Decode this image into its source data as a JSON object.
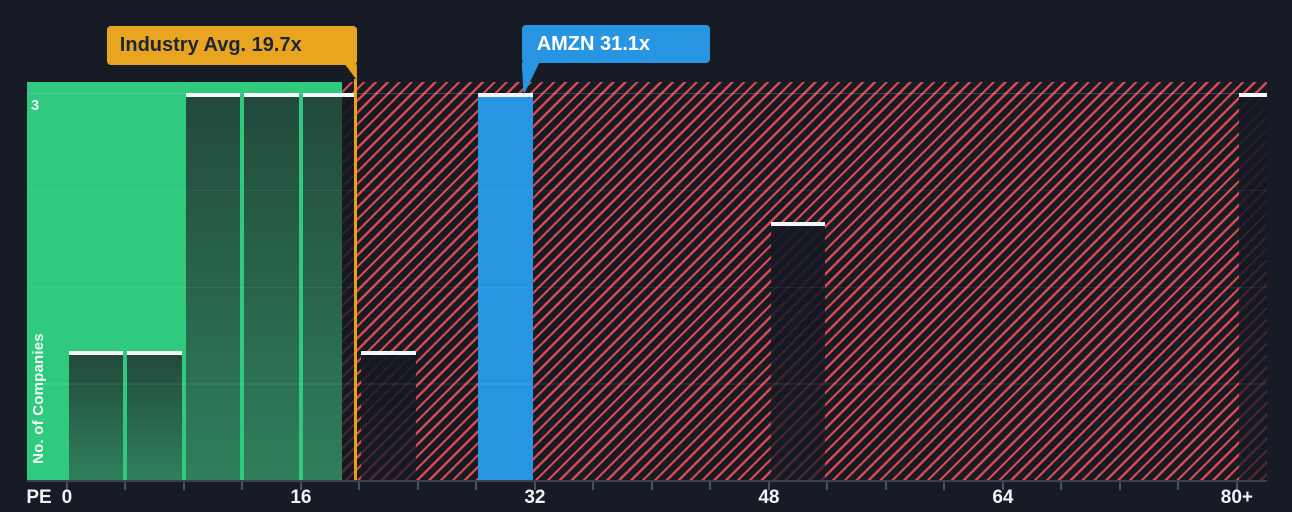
{
  "chart_data": {
    "type": "bar",
    "title": "",
    "xlabel": "PE",
    "ylabel": "No. of Companies",
    "y_max_label": "3",
    "ylim": [
      0,
      3
    ],
    "xlim": [
      0,
      82
    ],
    "x_tick_values": [
      0,
      16,
      32,
      48,
      64,
      80
    ],
    "x_tick_labels": [
      "0",
      "16",
      "32",
      "48",
      "64",
      "80+"
    ],
    "minor_tick_step": 4,
    "grid": "faint horizontal lines at quarter heights",
    "legend": "none",
    "bins": [
      {
        "range": [
          0,
          4
        ],
        "count": 1,
        "zone": "below"
      },
      {
        "range": [
          4,
          8
        ],
        "count": 1,
        "zone": "below"
      },
      {
        "range": [
          8,
          12
        ],
        "count": 3,
        "zone": "below"
      },
      {
        "range": [
          12,
          16
        ],
        "count": 3,
        "zone": "below"
      },
      {
        "range": [
          16,
          20
        ],
        "count": 3,
        "zone": "split"
      },
      {
        "range": [
          20,
          24
        ],
        "count": 1,
        "zone": "above"
      },
      {
        "range": [
          28,
          32
        ],
        "count": 3,
        "zone": "above",
        "highlight": "company"
      },
      {
        "range": [
          48,
          52
        ],
        "count": 2,
        "zone": "above"
      },
      {
        "range": [
          80,
          82
        ],
        "count": 3,
        "zone": "above"
      }
    ],
    "markers": [
      {
        "id": "industry",
        "label": "Industry Avg. 19.7x",
        "pe": 19.7
      },
      {
        "id": "company",
        "label": "AMZN 31.1x",
        "pe": 31.1
      }
    ],
    "zones": {
      "below_end_pe": 18.8,
      "above_start_pe": 18.8
    }
  },
  "colors": {
    "background": "#161b26",
    "below_zone_green": "#2fca7e",
    "bar_green_top": "#224a3c",
    "bar_green_bottom": "#2f7f5c",
    "hatch_red": "#d94a4e",
    "company_blue": "#2795e2",
    "industry_yellow": "#e9a51f",
    "industry_line_yellow": "#e8a11c",
    "bar_top_white": "#f4f6f7",
    "axis_line": "#39414f",
    "tick_mark": "#4a515f",
    "axis_text": "#f0f3f5",
    "callout_dark_text": "#1e2633"
  }
}
